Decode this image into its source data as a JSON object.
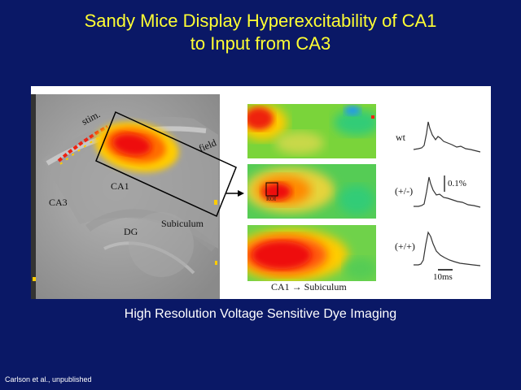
{
  "slide": {
    "title_line1": "Sandy Mice Display Hyperexcitability of CA1",
    "title_line2": "to Input from CA3",
    "caption": "High Resolution Voltage Sensitive Dye Imaging",
    "credit": "Carlson et al., unpublished"
  },
  "figure": {
    "slice_labels": {
      "stim": "stim.",
      "field": "field",
      "ca1": "CA1",
      "ca3": "CA3",
      "dg": "DG",
      "subiculum": "Subiculum"
    },
    "panel_labels": {
      "roi": "ROI",
      "axis": "CA1 → Subiculum"
    },
    "traces": [
      {
        "genotype": "wt"
      },
      {
        "genotype": "(+/-)"
      },
      {
        "genotype": "(+/+)"
      }
    ],
    "scale": {
      "amplitude": "0.1%",
      "time": "10ms"
    }
  },
  "colors": {
    "background": "#0a1866",
    "title": "#ffff33",
    "text": "#ffffff",
    "heat_high": "#ee1111",
    "heat_mid": "#ffcc00",
    "heat_low": "#22cc44"
  }
}
